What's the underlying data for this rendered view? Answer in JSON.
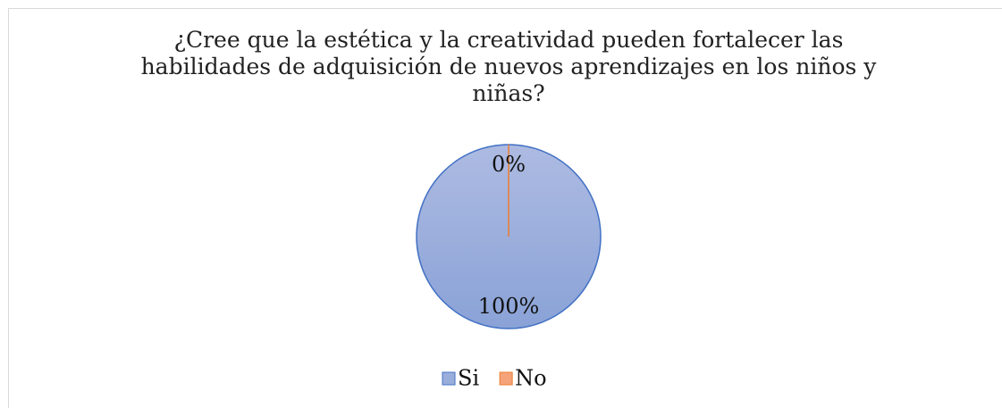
{
  "chart_data": {
    "type": "pie",
    "title": "¿Cree que la estética y la creatividad pueden fortalecer las habilidades de adquisición de nuevos aprendizajes en los niños y niñas?",
    "categories": [
      "Si",
      "No"
    ],
    "values": [
      100,
      0
    ],
    "value_labels": [
      "100%",
      "0%"
    ],
    "colors": [
      "#9aaedc",
      "#f4a37a"
    ],
    "legend": "bottom"
  }
}
